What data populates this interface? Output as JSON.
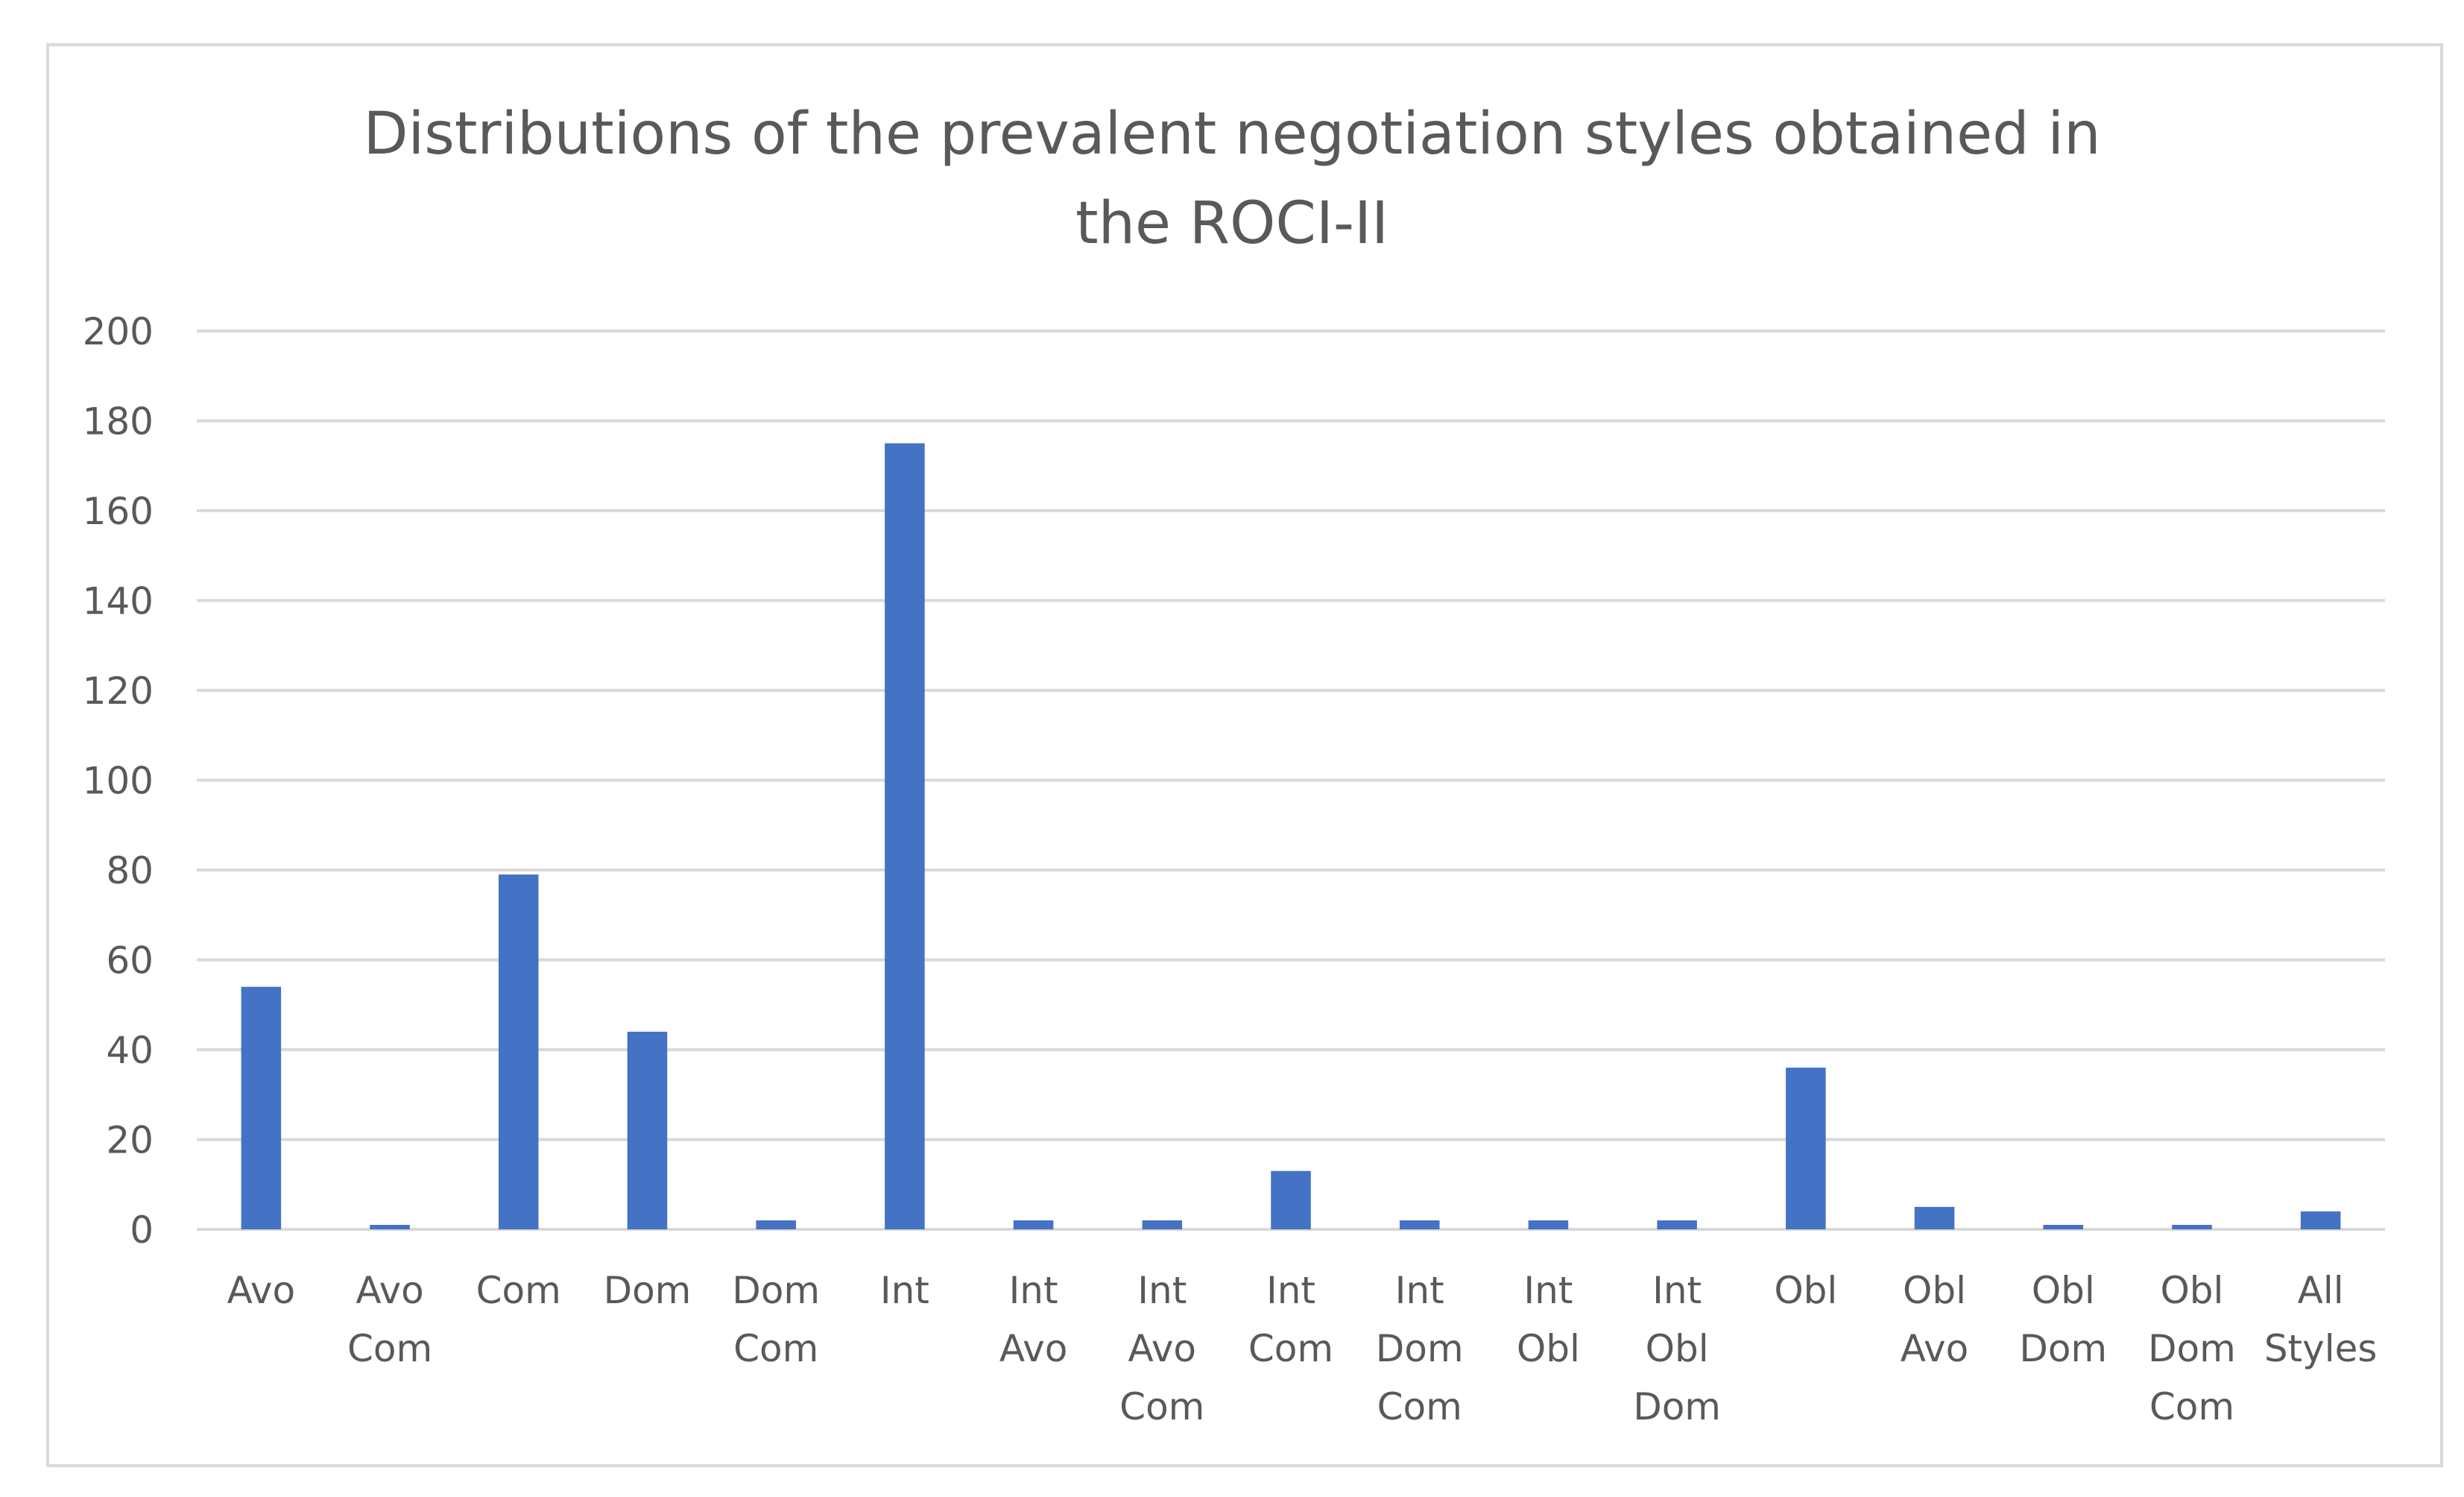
{
  "chart_data": {
    "type": "bar",
    "title_lines": [
      "Distributions of the prevalent negotiation styles obtained in",
      "the ROCI-II"
    ],
    "categories": [
      [
        "Avo"
      ],
      [
        "Avo",
        "Com"
      ],
      [
        "Com"
      ],
      [
        "Dom"
      ],
      [
        "Dom",
        "Com"
      ],
      [
        "Int"
      ],
      [
        "Int",
        "Avo"
      ],
      [
        "Int",
        "Avo",
        "Com"
      ],
      [
        "Int",
        "Com"
      ],
      [
        "Int",
        "Dom",
        "Com"
      ],
      [
        "Int",
        "Obl"
      ],
      [
        "Int",
        "Obl",
        "Dom"
      ],
      [
        "Obl"
      ],
      [
        "Obl",
        "Avo"
      ],
      [
        "Obl",
        "Dom"
      ],
      [
        "Obl",
        "Dom",
        "Com"
      ],
      [
        "All",
        "Styles"
      ]
    ],
    "values": [
      54,
      1,
      79,
      44,
      2,
      175,
      2,
      2,
      13,
      2,
      2,
      2,
      36,
      5,
      1,
      1,
      4
    ],
    "ylim": [
      0,
      200
    ],
    "yticks": [
      0,
      20,
      40,
      60,
      80,
      100,
      120,
      140,
      160,
      180,
      200
    ],
    "grid": true,
    "legend": "none",
    "colors": {
      "bar": "#4472c4",
      "grid": "#d9d9d9",
      "text": "#595959"
    }
  }
}
